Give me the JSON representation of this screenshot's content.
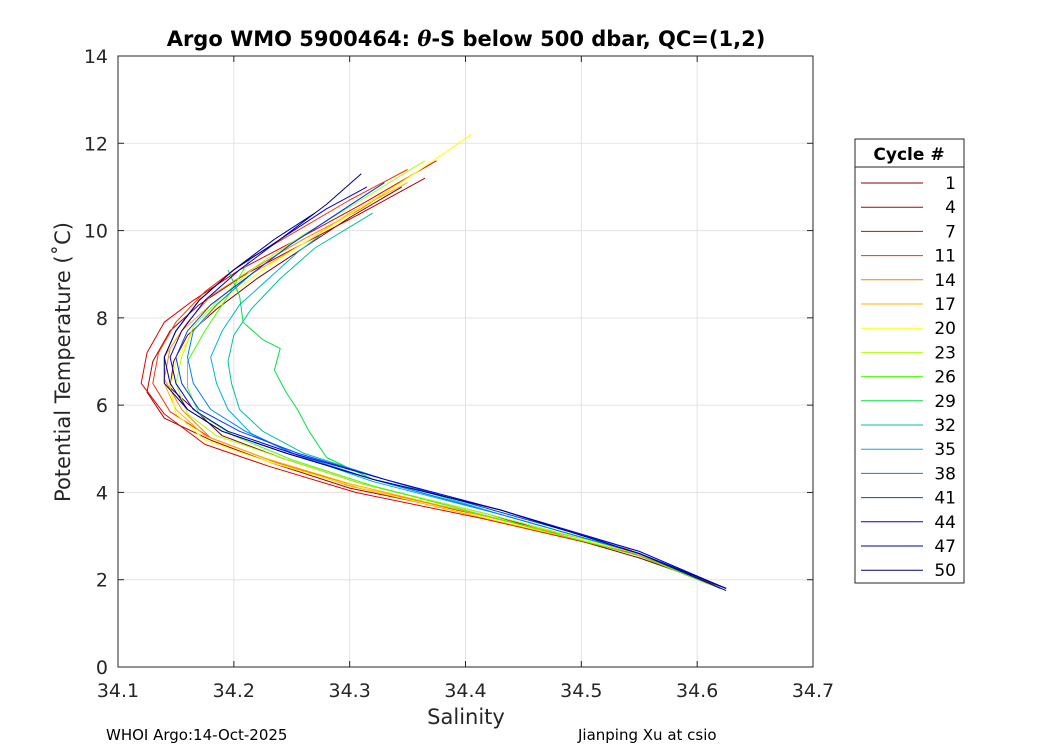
{
  "chart_data": {
    "type": "line",
    "title": "Argo WMO 5900464: θ-S below 500 dbar,  QC=(1,2)",
    "title_prefix": "Argo WMO 5900464: ",
    "title_symbol": "θ",
    "title_suffix": "-S below 500 dbar,  QC=(1,2)",
    "xlabel": "Salinity",
    "ylabel": "Potential Temperature (˚C)",
    "xlim": [
      34.1,
      34.7
    ],
    "ylim": [
      0,
      14
    ],
    "xticks": [
      "34.1",
      "34.2",
      "34.3",
      "34.4",
      "34.5",
      "34.6",
      "34.7"
    ],
    "yticks": [
      "0",
      "2",
      "4",
      "6",
      "8",
      "10",
      "12",
      "14"
    ],
    "grid": true,
    "legend_title": "Cycle #",
    "legend_position": "right",
    "series": [
      {
        "name": "1",
        "color": "#800000",
        "x": [
          34.625,
          34.55,
          34.42,
          34.31,
          34.24,
          34.19,
          34.17,
          34.145,
          34.148,
          34.16,
          34.185,
          34.22,
          34.26,
          34.3,
          34.345
        ],
        "y": [
          1.8,
          2.5,
          3.5,
          4.2,
          4.8,
          5.3,
          5.8,
          6.4,
          7.0,
          7.6,
          8.2,
          8.9,
          9.6,
          10.3,
          11.0
        ]
      },
      {
        "name": "4",
        "color": "#b00000",
        "x": [
          34.615,
          34.54,
          34.41,
          34.3,
          34.23,
          34.18,
          34.14,
          34.125,
          34.13,
          34.145,
          34.17,
          34.21,
          34.26,
          34.31,
          34.365
        ],
        "y": [
          1.9,
          2.7,
          3.5,
          4.1,
          4.7,
          5.2,
          5.7,
          6.3,
          7.0,
          7.7,
          8.3,
          9.0,
          9.7,
          10.4,
          11.2
        ]
      },
      {
        "name": "7",
        "color": "#e00000",
        "x": [
          34.62,
          34.545,
          34.415,
          34.305,
          34.23,
          34.175,
          34.14,
          34.12,
          34.125,
          34.14,
          34.165,
          34.205,
          34.255,
          34.31,
          34.375
        ],
        "y": [
          1.85,
          2.6,
          3.4,
          4.0,
          4.6,
          5.1,
          5.8,
          6.5,
          7.2,
          7.9,
          8.4,
          9.1,
          9.8,
          10.6,
          11.6
        ]
      },
      {
        "name": "11",
        "color": "#ff3000",
        "x": [
          34.62,
          34.55,
          34.42,
          34.31,
          34.235,
          34.18,
          34.145,
          34.13,
          34.135,
          34.15,
          34.175,
          34.21,
          34.255,
          34.3,
          34.35
        ],
        "y": [
          1.8,
          2.55,
          3.45,
          4.1,
          4.7,
          5.25,
          5.85,
          6.5,
          7.2,
          7.9,
          8.6,
          9.3,
          10.0,
          10.7,
          11.4
        ]
      },
      {
        "name": "14",
        "color": "#ff8000",
        "x": [
          34.61,
          34.54,
          34.41,
          34.3,
          34.23,
          34.18,
          34.155,
          34.14,
          34.145,
          34.16,
          34.18,
          34.215,
          34.26,
          34.31,
          34.355
        ],
        "y": [
          1.9,
          2.65,
          3.45,
          4.15,
          4.75,
          5.25,
          5.9,
          6.6,
          7.3,
          7.9,
          8.5,
          9.1,
          9.8,
          10.5,
          11.3
        ]
      },
      {
        "name": "17",
        "color": "#ffb000",
        "x": [
          34.61,
          34.54,
          34.41,
          34.3,
          34.225,
          34.175,
          34.15,
          34.14,
          34.14,
          34.155,
          34.18,
          34.215,
          34.26,
          34.3,
          34.35
        ],
        "y": [
          1.9,
          2.7,
          3.5,
          4.2,
          4.8,
          5.3,
          5.9,
          6.5,
          7.1,
          7.7,
          8.3,
          9.0,
          9.7,
          10.4,
          11.1
        ]
      },
      {
        "name": "20",
        "color": "#ffff00",
        "x": [
          34.615,
          34.55,
          34.42,
          34.31,
          34.23,
          34.175,
          34.15,
          34.145,
          34.15,
          34.165,
          34.19,
          34.23,
          34.29,
          34.35,
          34.405
        ],
        "y": [
          1.85,
          2.6,
          3.4,
          4.1,
          4.7,
          5.2,
          5.8,
          6.4,
          7.0,
          7.7,
          8.4,
          9.2,
          10.2,
          11.2,
          12.2
        ]
      },
      {
        "name": "23",
        "color": "#b0ff00",
        "x": [
          34.62,
          34.55,
          34.42,
          34.31,
          34.24,
          34.185,
          34.16,
          34.15,
          34.155,
          34.165,
          34.19,
          34.22,
          34.26,
          34.31,
          34.365
        ],
        "y": [
          1.8,
          2.6,
          3.5,
          4.2,
          4.8,
          5.3,
          5.8,
          6.5,
          7.1,
          7.8,
          8.5,
          9.2,
          9.9,
          10.7,
          11.6
        ]
      },
      {
        "name": "26",
        "color": "#40ff00",
        "x": [
          34.62,
          34.55,
          34.42,
          34.32,
          34.25,
          34.2,
          34.17,
          34.16,
          34.16,
          34.175,
          34.195,
          34.215
        ],
        "y": [
          1.8,
          2.55,
          3.45,
          4.15,
          4.75,
          5.3,
          5.8,
          6.4,
          7.0,
          7.7,
          8.5,
          9.4
        ]
      },
      {
        "name": "29",
        "color": "#00e040",
        "x": [
          34.62,
          34.55,
          34.43,
          34.32,
          34.28,
          34.265,
          34.255,
          34.245,
          34.235,
          34.24,
          34.225,
          34.208,
          34.205,
          34.195
        ],
        "y": [
          1.8,
          2.6,
          3.5,
          4.3,
          4.8,
          5.4,
          5.9,
          6.3,
          6.8,
          7.3,
          7.5,
          7.9,
          8.5,
          9.1
        ]
      },
      {
        "name": "32",
        "color": "#00c0a0",
        "x": [
          34.62,
          34.55,
          34.43,
          34.33,
          34.26,
          34.225,
          34.205,
          34.198,
          34.195,
          34.2,
          34.215,
          34.24,
          34.27,
          34.295,
          34.32
        ],
        "y": [
          1.8,
          2.6,
          3.5,
          4.3,
          4.9,
          5.4,
          5.9,
          6.5,
          7.0,
          7.6,
          8.2,
          8.9,
          9.6,
          10.0,
          10.4
        ]
      },
      {
        "name": "35",
        "color": "#00b0e0",
        "x": [
          34.625,
          34.55,
          34.43,
          34.32,
          34.255,
          34.215,
          34.195,
          34.185,
          34.18,
          34.19,
          34.205,
          34.23,
          34.255,
          34.275
        ],
        "y": [
          1.8,
          2.6,
          3.5,
          4.25,
          4.85,
          5.35,
          5.9,
          6.5,
          7.1,
          7.7,
          8.3,
          8.9,
          9.5,
          9.9
        ]
      },
      {
        "name": "38",
        "color": "#0080ff",
        "x": [
          34.625,
          34.55,
          34.43,
          34.32,
          34.25,
          34.21,
          34.18,
          34.165,
          34.16,
          34.165,
          34.185,
          34.215,
          34.25,
          34.29,
          34.33
        ],
        "y": [
          1.8,
          2.6,
          3.5,
          4.3,
          4.9,
          5.4,
          5.9,
          6.5,
          7.1,
          7.7,
          8.3,
          9.0,
          9.7,
          10.4,
          11.1
        ]
      },
      {
        "name": "41",
        "color": "#0040ff",
        "x": [
          34.625,
          34.55,
          34.43,
          34.33,
          34.255,
          34.205,
          34.17,
          34.155,
          34.15,
          34.16,
          34.18,
          34.215,
          34.25,
          34.29,
          34.33
        ],
        "y": [
          1.8,
          2.65,
          3.55,
          4.3,
          4.9,
          5.4,
          5.9,
          6.5,
          7.1,
          7.7,
          8.3,
          9.0,
          9.7,
          10.4,
          11.1
        ]
      },
      {
        "name": "44",
        "color": "#0000e0",
        "x": [
          34.625,
          34.55,
          34.43,
          34.33,
          34.25,
          34.195,
          34.165,
          34.15,
          34.145,
          34.155,
          34.175,
          34.205,
          34.24,
          34.28,
          34.315
        ],
        "y": [
          1.8,
          2.65,
          3.6,
          4.3,
          4.9,
          5.4,
          5.9,
          6.5,
          7.1,
          7.7,
          8.4,
          9.1,
          9.8,
          10.5,
          11.0
        ]
      },
      {
        "name": "47",
        "color": "#0000a0",
        "x": [
          34.625,
          34.55,
          34.43,
          34.32,
          34.245,
          34.19,
          34.16,
          34.145,
          34.14,
          34.15,
          34.17,
          34.2,
          34.235,
          34.27
        ],
        "y": [
          1.8,
          2.6,
          3.6,
          4.3,
          4.9,
          5.4,
          5.9,
          6.5,
          7.1,
          7.7,
          8.4,
          9.1,
          9.8,
          10.4
        ]
      },
      {
        "name": "50",
        "color": "#000080",
        "x": [
          34.625,
          34.55,
          34.43,
          34.32,
          34.245,
          34.19,
          34.16,
          34.14,
          34.14,
          34.15,
          34.17,
          34.2,
          34.24,
          34.28,
          34.31
        ],
        "y": [
          1.75,
          2.6,
          3.6,
          4.3,
          4.9,
          5.4,
          5.9,
          6.5,
          7.1,
          7.7,
          8.4,
          9.1,
          9.8,
          10.6,
          11.3
        ]
      }
    ]
  },
  "footer": {
    "left": "WHOI Argo:14-Oct-2025",
    "right": "Jianping Xu at csio"
  }
}
